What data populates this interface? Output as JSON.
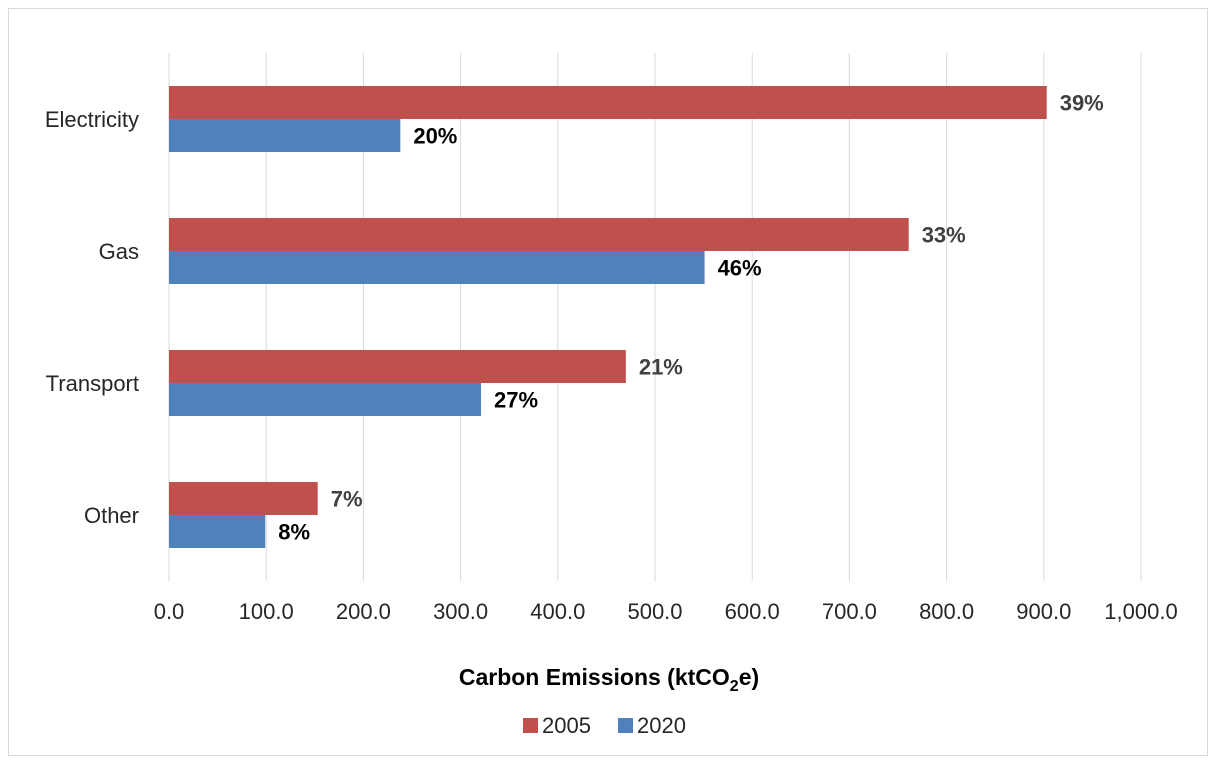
{
  "chart_data": {
    "type": "bar",
    "orientation": "horizontal",
    "categories": [
      "Electricity",
      "Gas",
      "Transport",
      "Other"
    ],
    "series": [
      {
        "name": "2005",
        "color": "#c0504d",
        "values": [
          903,
          761,
          470,
          153
        ],
        "data_labels": [
          "39%",
          "33%",
          "21%",
          "7%"
        ],
        "label_color": "#404040"
      },
      {
        "name": "2020",
        "color": "#4f81bd",
        "values": [
          238,
          551,
          321,
          99
        ],
        "data_labels": [
          "20%",
          "46%",
          "27%",
          "8%"
        ],
        "label_color": "#000000"
      }
    ],
    "xlabel_parts": [
      "Carbon Emissions (ktCO",
      "2",
      "e)"
    ],
    "xlim": [
      0,
      1000
    ],
    "x_ticks": [
      "0.0",
      "100.0",
      "200.0",
      "300.0",
      "400.0",
      "500.0",
      "600.0",
      "700.0",
      "800.0",
      "900.0",
      "1,000.0"
    ],
    "grid": "vertical",
    "legend_position": "bottom"
  }
}
